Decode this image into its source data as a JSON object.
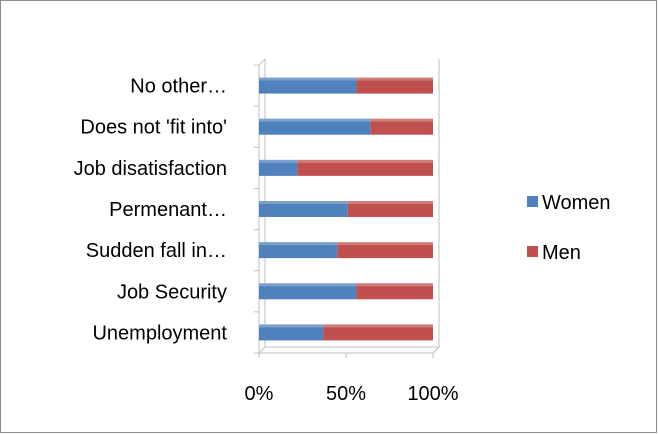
{
  "chart_data": {
    "type": "bar",
    "orientation": "horizontal",
    "stacked": "percent",
    "categories": [
      "No other…",
      "Does not 'fit into'",
      "Job disatisfaction",
      "Permenant…",
      "Sudden fall in…",
      "Job Security",
      "Unemployment"
    ],
    "series": [
      {
        "name": "Women",
        "color": "#4f81bd",
        "values": [
          56,
          64,
          22,
          51,
          45,
          56,
          37
        ]
      },
      {
        "name": "Men",
        "color": "#c0504d",
        "values": [
          44,
          36,
          78,
          49,
          55,
          44,
          63
        ]
      }
    ],
    "x_ticks": [
      "0%",
      "50%",
      "100%"
    ],
    "xlim": [
      0,
      100
    ],
    "grid": false,
    "legend_position": "right",
    "title": "",
    "xlabel": "",
    "ylabel": ""
  }
}
